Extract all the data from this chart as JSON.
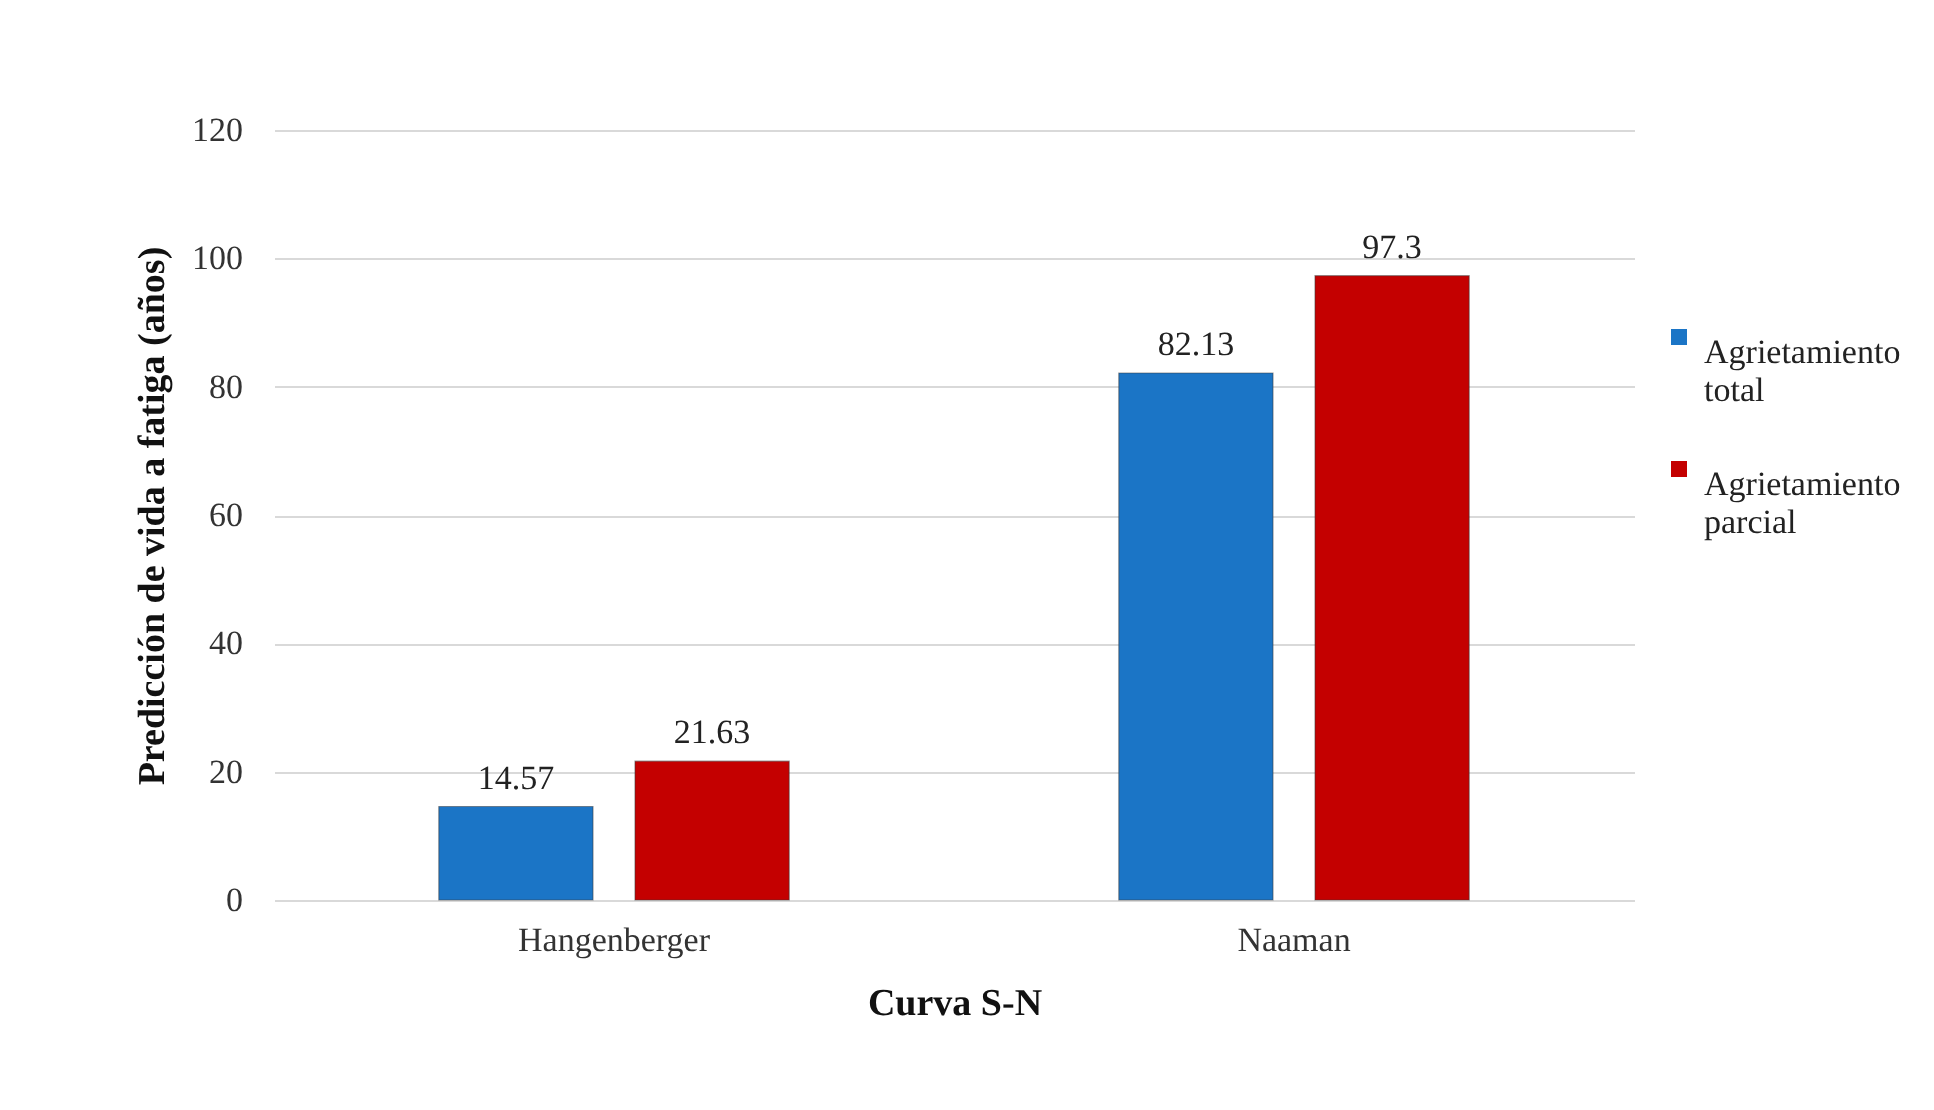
{
  "chart_data": {
    "type": "bar",
    "xlabel": "Curva S-N",
    "ylabel": "Predicción de vida a fatiga (años)",
    "categories": [
      "Hangenberger",
      "Naaman"
    ],
    "series": [
      {
        "name": "Agrietamiento total",
        "color": "#1b75c6",
        "values": [
          14.57,
          82.13
        ]
      },
      {
        "name": "Agrietamiento parcial",
        "color": "#c40000",
        "values": [
          21.63,
          97.3
        ]
      }
    ],
    "ylim": [
      0,
      120
    ],
    "yticks": [
      0,
      20,
      40,
      60,
      80,
      100,
      120
    ],
    "grid": "y",
    "legend": "right",
    "data_labels": true
  }
}
